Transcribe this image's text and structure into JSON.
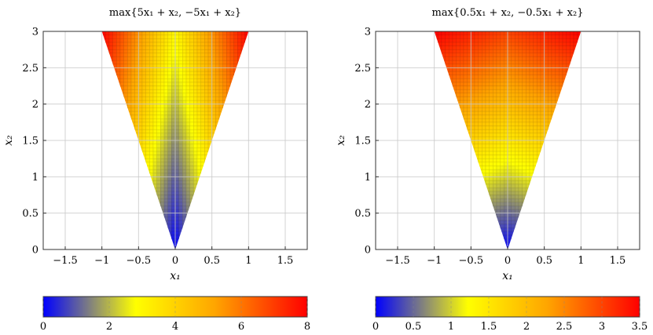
{
  "colormap": [
    {
      "pos": 0,
      "color": "#0000ff"
    },
    {
      "pos": 0.35,
      "color": "#ffff00"
    },
    {
      "pos": 0.65,
      "color": "#ffa500"
    },
    {
      "pos": 1,
      "color": "#ff0000"
    }
  ],
  "chart_data": [
    {
      "type": "heatmap",
      "title": "max{5x₁ + x₂, −5x₁ + x₂}",
      "function": "max(5*x1 + x2, -5*x1 + x2)",
      "a": 5,
      "domain": "x2 in [0,3], |x1| <= x2/3",
      "xlabel": "x₁",
      "ylabel": "x₂",
      "xlim": [
        -1.8,
        1.8
      ],
      "ylim": [
        0,
        3
      ],
      "xticks": [
        -1.5,
        -1,
        -0.5,
        0,
        0.5,
        1,
        1.5
      ],
      "xtick_labels": [
        "−1.5",
        "−1",
        "−0.5",
        "0",
        "0.5",
        "1",
        "1.5"
      ],
      "yticks": [
        0,
        0.5,
        1,
        1.5,
        2,
        2.5,
        3
      ],
      "ytick_labels": [
        "0",
        "0.5",
        "1",
        "1.5",
        "2",
        "2.5",
        "3"
      ],
      "grid": true,
      "colorbar": {
        "placement": "bottom",
        "range": [
          0,
          8
        ],
        "ticks": [
          0,
          2,
          4,
          6,
          8
        ],
        "tick_labels": [
          "0",
          "2",
          "4",
          "6",
          "8"
        ]
      }
    },
    {
      "type": "heatmap",
      "title": "max{0.5x₁ + x₂, −0.5x₁ + x₂}",
      "function": "max(0.5*x1 + x2, -0.5*x1 + x2)",
      "a": 0.5,
      "domain": "x2 in [0,3], |x1| <= x2/3",
      "xlabel": "x₁",
      "ylabel": "x₂",
      "xlim": [
        -1.8,
        1.8
      ],
      "ylim": [
        0,
        3
      ],
      "xticks": [
        -1.5,
        -1,
        -0.5,
        0,
        0.5,
        1,
        1.5
      ],
      "xtick_labels": [
        "−1.5",
        "−1",
        "−0.5",
        "0",
        "0.5",
        "1",
        "1.5"
      ],
      "yticks": [
        0,
        0.5,
        1,
        1.5,
        2,
        2.5,
        3
      ],
      "ytick_labels": [
        "0",
        "0.5",
        "1",
        "1.5",
        "2",
        "2.5",
        "3"
      ],
      "grid": true,
      "colorbar": {
        "placement": "bottom",
        "range": [
          0,
          3.5
        ],
        "ticks": [
          0,
          0.5,
          1,
          1.5,
          2,
          2.5,
          3,
          3.5
        ],
        "tick_labels": [
          "0",
          "0.5",
          "1",
          "1.5",
          "2",
          "2.5",
          "3",
          "3.5"
        ]
      }
    }
  ]
}
